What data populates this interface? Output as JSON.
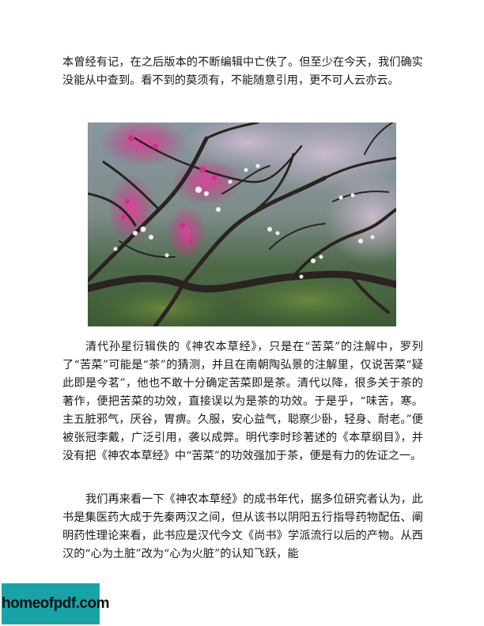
{
  "document": {
    "paragraph_top": "本曾经有记，在之后版本的不断编辑中亡佚了。但至少在今天，我们确实没能从中查到。看不到的莫须有，不能随意引用，更不可人云亦云。",
    "paragraph_1": "清代孙星衍辑佚的《神农本草经》，只是在“苦菜”的注解中，罗列了“苦菜”可能是“茶”的猜测，并且在南朝陶弘景的注解里，仅说苦菜“疑此即是今茗”，他也不敢十分确定苦菜即是茶。清代以降，很多关于茶的著作，便把苦菜的功效，直接误以为是茶的功效。于是乎，“味苦，寒。主五脏邪气，厌谷，胃痹。久服，安心益气，聪察少卧，轻身、耐老。”便被张冠李戴，广泛引用，袭以成弊。明代李时珍著述的《本草纲目》，并没有把《神农本草经》中“苦菜”的功效强加于茶，便是有力的佐证之一。",
    "paragraph_2": "我们再来看一下《神农本草经》的成书年代，据多位研究者认为，此书是集医药大成于先秦两汉之间，但从该书以阴阳五行指导药物配伍、阐明药性理论来看，此书应是汉代今文《尚书》学派流行以后的产物。从西汉的“心为土脏”改为“心为火脏”的认知飞跃，能"
  },
  "photo": {
    "subject": "plum-blossom-branches"
  },
  "watermark": {
    "text": "homeofpdf.com",
    "color": "#1aa3a6"
  }
}
